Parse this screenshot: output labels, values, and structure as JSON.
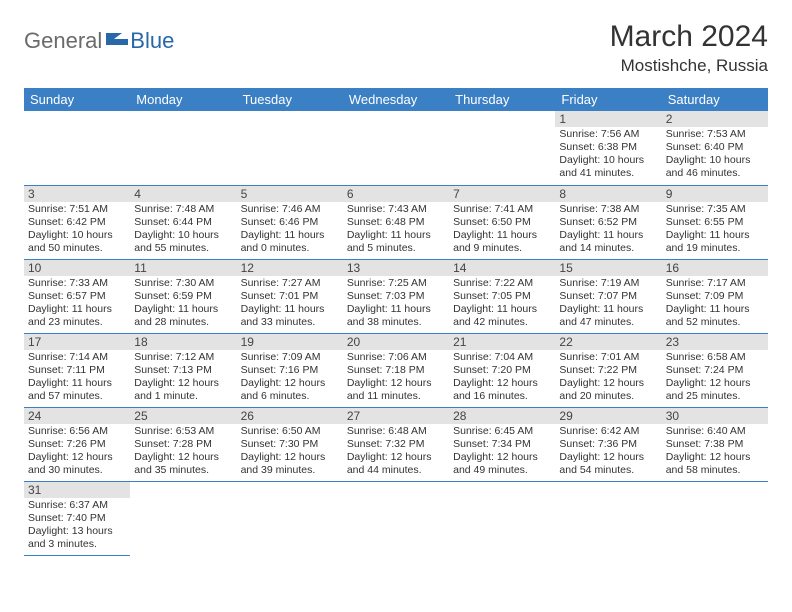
{
  "brand": {
    "part1": "General",
    "part2": "Blue"
  },
  "title": "March 2024",
  "location": "Mostishche, Russia",
  "colors": {
    "header_bg": "#3b7fc4",
    "header_fg": "#ffffff",
    "daynum_bg": "#e3e3e3",
    "border": "#3b7fc4",
    "logo_gray": "#6b6b6b",
    "logo_blue": "#2968a8"
  },
  "day_headers": [
    "Sunday",
    "Monday",
    "Tuesday",
    "Wednesday",
    "Thursday",
    "Friday",
    "Saturday"
  ],
  "weeks": [
    [
      null,
      null,
      null,
      null,
      null,
      {
        "n": "1",
        "sr": "Sunrise: 7:56 AM",
        "ss": "Sunset: 6:38 PM",
        "d1": "Daylight: 10 hours",
        "d2": "and 41 minutes."
      },
      {
        "n": "2",
        "sr": "Sunrise: 7:53 AM",
        "ss": "Sunset: 6:40 PM",
        "d1": "Daylight: 10 hours",
        "d2": "and 46 minutes."
      }
    ],
    [
      {
        "n": "3",
        "sr": "Sunrise: 7:51 AM",
        "ss": "Sunset: 6:42 PM",
        "d1": "Daylight: 10 hours",
        "d2": "and 50 minutes."
      },
      {
        "n": "4",
        "sr": "Sunrise: 7:48 AM",
        "ss": "Sunset: 6:44 PM",
        "d1": "Daylight: 10 hours",
        "d2": "and 55 minutes."
      },
      {
        "n": "5",
        "sr": "Sunrise: 7:46 AM",
        "ss": "Sunset: 6:46 PM",
        "d1": "Daylight: 11 hours",
        "d2": "and 0 minutes."
      },
      {
        "n": "6",
        "sr": "Sunrise: 7:43 AM",
        "ss": "Sunset: 6:48 PM",
        "d1": "Daylight: 11 hours",
        "d2": "and 5 minutes."
      },
      {
        "n": "7",
        "sr": "Sunrise: 7:41 AM",
        "ss": "Sunset: 6:50 PM",
        "d1": "Daylight: 11 hours",
        "d2": "and 9 minutes."
      },
      {
        "n": "8",
        "sr": "Sunrise: 7:38 AM",
        "ss": "Sunset: 6:52 PM",
        "d1": "Daylight: 11 hours",
        "d2": "and 14 minutes."
      },
      {
        "n": "9",
        "sr": "Sunrise: 7:35 AM",
        "ss": "Sunset: 6:55 PM",
        "d1": "Daylight: 11 hours",
        "d2": "and 19 minutes."
      }
    ],
    [
      {
        "n": "10",
        "sr": "Sunrise: 7:33 AM",
        "ss": "Sunset: 6:57 PM",
        "d1": "Daylight: 11 hours",
        "d2": "and 23 minutes."
      },
      {
        "n": "11",
        "sr": "Sunrise: 7:30 AM",
        "ss": "Sunset: 6:59 PM",
        "d1": "Daylight: 11 hours",
        "d2": "and 28 minutes."
      },
      {
        "n": "12",
        "sr": "Sunrise: 7:27 AM",
        "ss": "Sunset: 7:01 PM",
        "d1": "Daylight: 11 hours",
        "d2": "and 33 minutes."
      },
      {
        "n": "13",
        "sr": "Sunrise: 7:25 AM",
        "ss": "Sunset: 7:03 PM",
        "d1": "Daylight: 11 hours",
        "d2": "and 38 minutes."
      },
      {
        "n": "14",
        "sr": "Sunrise: 7:22 AM",
        "ss": "Sunset: 7:05 PM",
        "d1": "Daylight: 11 hours",
        "d2": "and 42 minutes."
      },
      {
        "n": "15",
        "sr": "Sunrise: 7:19 AM",
        "ss": "Sunset: 7:07 PM",
        "d1": "Daylight: 11 hours",
        "d2": "and 47 minutes."
      },
      {
        "n": "16",
        "sr": "Sunrise: 7:17 AM",
        "ss": "Sunset: 7:09 PM",
        "d1": "Daylight: 11 hours",
        "d2": "and 52 minutes."
      }
    ],
    [
      {
        "n": "17",
        "sr": "Sunrise: 7:14 AM",
        "ss": "Sunset: 7:11 PM",
        "d1": "Daylight: 11 hours",
        "d2": "and 57 minutes."
      },
      {
        "n": "18",
        "sr": "Sunrise: 7:12 AM",
        "ss": "Sunset: 7:13 PM",
        "d1": "Daylight: 12 hours",
        "d2": "and 1 minute."
      },
      {
        "n": "19",
        "sr": "Sunrise: 7:09 AM",
        "ss": "Sunset: 7:16 PM",
        "d1": "Daylight: 12 hours",
        "d2": "and 6 minutes."
      },
      {
        "n": "20",
        "sr": "Sunrise: 7:06 AM",
        "ss": "Sunset: 7:18 PM",
        "d1": "Daylight: 12 hours",
        "d2": "and 11 minutes."
      },
      {
        "n": "21",
        "sr": "Sunrise: 7:04 AM",
        "ss": "Sunset: 7:20 PM",
        "d1": "Daylight: 12 hours",
        "d2": "and 16 minutes."
      },
      {
        "n": "22",
        "sr": "Sunrise: 7:01 AM",
        "ss": "Sunset: 7:22 PM",
        "d1": "Daylight: 12 hours",
        "d2": "and 20 minutes."
      },
      {
        "n": "23",
        "sr": "Sunrise: 6:58 AM",
        "ss": "Sunset: 7:24 PM",
        "d1": "Daylight: 12 hours",
        "d2": "and 25 minutes."
      }
    ],
    [
      {
        "n": "24",
        "sr": "Sunrise: 6:56 AM",
        "ss": "Sunset: 7:26 PM",
        "d1": "Daylight: 12 hours",
        "d2": "and 30 minutes."
      },
      {
        "n": "25",
        "sr": "Sunrise: 6:53 AM",
        "ss": "Sunset: 7:28 PM",
        "d1": "Daylight: 12 hours",
        "d2": "and 35 minutes."
      },
      {
        "n": "26",
        "sr": "Sunrise: 6:50 AM",
        "ss": "Sunset: 7:30 PM",
        "d1": "Daylight: 12 hours",
        "d2": "and 39 minutes."
      },
      {
        "n": "27",
        "sr": "Sunrise: 6:48 AM",
        "ss": "Sunset: 7:32 PM",
        "d1": "Daylight: 12 hours",
        "d2": "and 44 minutes."
      },
      {
        "n": "28",
        "sr": "Sunrise: 6:45 AM",
        "ss": "Sunset: 7:34 PM",
        "d1": "Daylight: 12 hours",
        "d2": "and 49 minutes."
      },
      {
        "n": "29",
        "sr": "Sunrise: 6:42 AM",
        "ss": "Sunset: 7:36 PM",
        "d1": "Daylight: 12 hours",
        "d2": "and 54 minutes."
      },
      {
        "n": "30",
        "sr": "Sunrise: 6:40 AM",
        "ss": "Sunset: 7:38 PM",
        "d1": "Daylight: 12 hours",
        "d2": "and 58 minutes."
      }
    ],
    [
      {
        "n": "31",
        "sr": "Sunrise: 6:37 AM",
        "ss": "Sunset: 7:40 PM",
        "d1": "Daylight: 13 hours",
        "d2": "and 3 minutes."
      },
      null,
      null,
      null,
      null,
      null,
      null
    ]
  ]
}
